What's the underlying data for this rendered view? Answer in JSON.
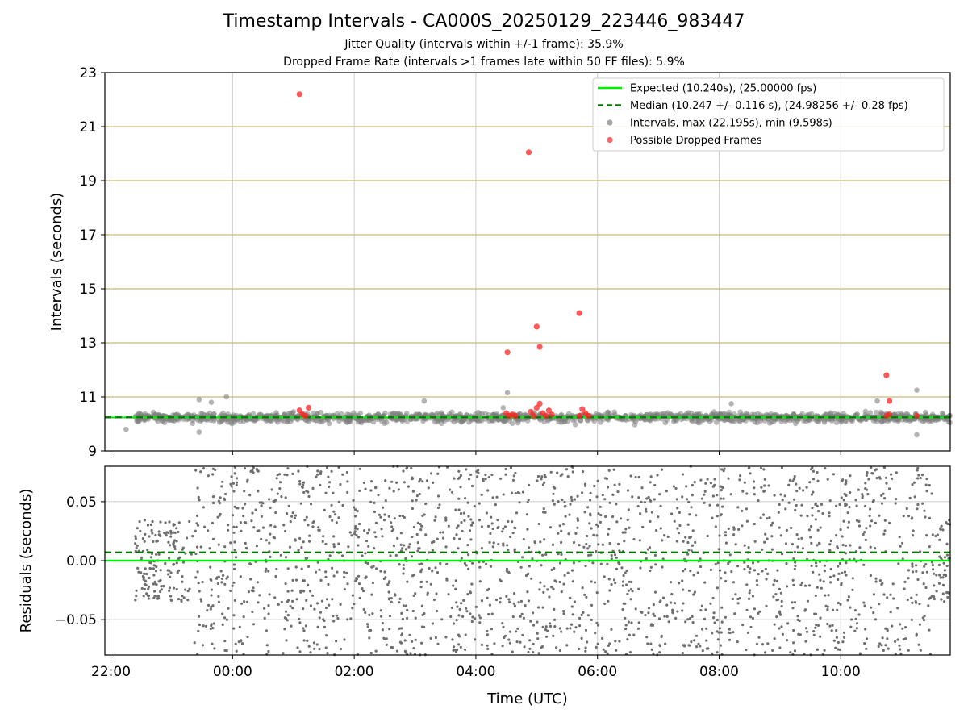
{
  "figure": {
    "title": "Timestamp Intervals - CA000S_20250129_223446_983447",
    "subtitle_jitter": "Jitter Quality (intervals within +/-1 frame): 35.9%",
    "subtitle_dropped": "Dropped Frame Rate (intervals >1 frames late within 50 FF files): 5.9%"
  },
  "colors": {
    "expected": "#00ee00",
    "median": "#007700",
    "intervals": "#808080",
    "dropped": "#ff2222",
    "grid_h_top": "#c8bb70",
    "grid": "#cccccc"
  },
  "chart_data": [
    {
      "type": "scatter",
      "ylabel": "Intervals (seconds)",
      "ylim": [
        9,
        23
      ],
      "xlim_hours": [
        -2.1,
        11.8
      ],
      "grid": true,
      "yticks": [
        "9",
        "11",
        "13",
        "15",
        "17",
        "19",
        "21",
        "23"
      ],
      "legend_position": "upper right",
      "legend": [
        "Expected (10.240s), (25.00000 fps)",
        "Median (10.247 +/- 0.116 s), (24.98256 +/- 0.28 fps)",
        "Intervals, max (22.195s), min (9.598s)",
        "Possible Dropped Frames"
      ],
      "expected_interval": 10.24,
      "median_interval": 10.247,
      "intervals_band": {
        "x_range_hours": [
          -1.6,
          11.8
        ],
        "center": 10.24,
        "spread": 0.12
      },
      "intervals_outliers": [
        {
          "x": -0.55,
          "y": 10.9
        },
        {
          "x": -0.35,
          "y": 10.8
        },
        {
          "x": -0.1,
          "y": 11.0
        },
        {
          "x": -0.55,
          "y": 9.7
        },
        {
          "x": -1.75,
          "y": 9.8
        },
        {
          "x": 3.15,
          "y": 10.85
        },
        {
          "x": 4.52,
          "y": 11.15
        },
        {
          "x": 8.2,
          "y": 10.75
        },
        {
          "x": 11.25,
          "y": 11.25
        },
        {
          "x": 11.25,
          "y": 9.6
        },
        {
          "x": 10.6,
          "y": 10.85
        },
        {
          "x": 4.45,
          "y": 10.6
        }
      ],
      "dropped_frames": [
        {
          "x": 1.1,
          "y": 22.2
        },
        {
          "x": 4.87,
          "y": 20.05
        },
        {
          "x": 5.7,
          "y": 14.1
        },
        {
          "x": 5.0,
          "y": 13.6
        },
        {
          "x": 4.52,
          "y": 12.65
        },
        {
          "x": 5.05,
          "y": 12.85
        },
        {
          "x": 10.75,
          "y": 11.8
        },
        {
          "x": 10.8,
          "y": 10.85
        },
        {
          "x": 1.1,
          "y": 10.5
        },
        {
          "x": 1.15,
          "y": 10.35
        },
        {
          "x": 1.2,
          "y": 10.3
        },
        {
          "x": 1.25,
          "y": 10.6
        },
        {
          "x": 4.5,
          "y": 10.4
        },
        {
          "x": 4.55,
          "y": 10.3
        },
        {
          "x": 4.6,
          "y": 10.35
        },
        {
          "x": 4.65,
          "y": 10.3
        },
        {
          "x": 4.9,
          "y": 10.45
        },
        {
          "x": 4.95,
          "y": 10.3
        },
        {
          "x": 5.0,
          "y": 10.6
        },
        {
          "x": 5.05,
          "y": 10.75
        },
        {
          "x": 5.1,
          "y": 10.4
        },
        {
          "x": 5.15,
          "y": 10.3
        },
        {
          "x": 5.2,
          "y": 10.5
        },
        {
          "x": 5.25,
          "y": 10.35
        },
        {
          "x": 5.7,
          "y": 10.3
        },
        {
          "x": 5.75,
          "y": 10.55
        },
        {
          "x": 5.8,
          "y": 10.4
        },
        {
          "x": 5.85,
          "y": 10.3
        },
        {
          "x": 10.75,
          "y": 10.3
        },
        {
          "x": 10.8,
          "y": 10.35
        },
        {
          "x": 11.25,
          "y": 10.3
        }
      ]
    },
    {
      "type": "scatter",
      "xlabel": "Time (UTC)",
      "ylabel": "Residuals (seconds)",
      "ylim": [
        -0.08,
        0.08
      ],
      "xlim_hours": [
        -2.1,
        11.8
      ],
      "grid": true,
      "yticks": [
        "−0.05",
        "0.00",
        "0.05"
      ],
      "ytick_values": [
        -0.05,
        0.0,
        0.05
      ],
      "xticks": [
        "22:00",
        "00:00",
        "02:00",
        "04:00",
        "06:00",
        "08:00",
        "10:00"
      ],
      "xtick_hours": [
        -2,
        0,
        2,
        4,
        6,
        8,
        10
      ],
      "expected_residual": 0.0,
      "median_residual": 0.007,
      "points_x_range_hours": [
        -1.6,
        11.8
      ],
      "points_early_spread": 0.035,
      "points_late_spread": 0.08
    }
  ]
}
